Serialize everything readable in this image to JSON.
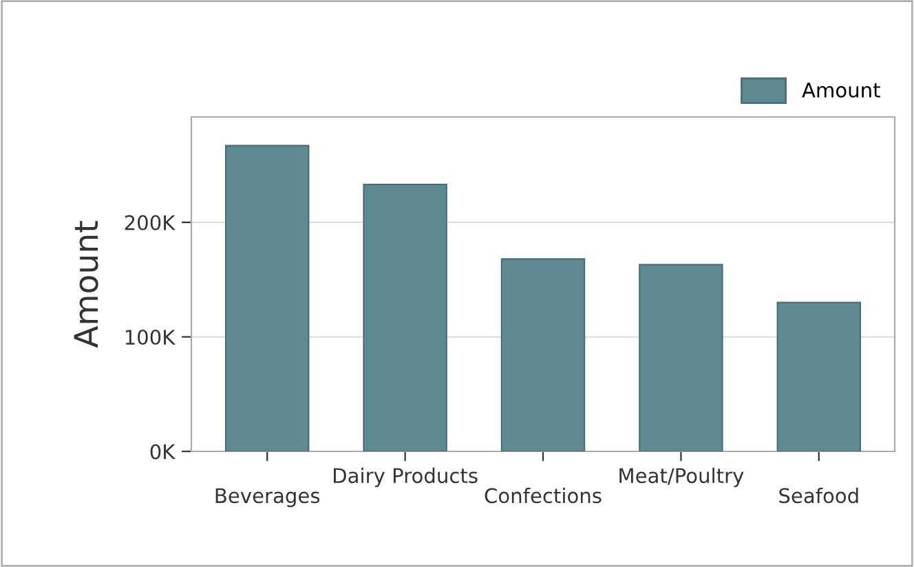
{
  "chart_data": {
    "type": "bar",
    "ylabel": "Amount",
    "categories": [
      "Beverages",
      "Dairy Products",
      "Confections",
      "Meat/Poultry",
      "Seafood"
    ],
    "series": [
      {
        "name": "Amount",
        "color": "#5f8a92",
        "values": [
          267000,
          233000,
          168000,
          163000,
          130000
        ]
      }
    ],
    "ylim": [
      0,
      292000
    ],
    "yticks": [
      {
        "value": 0,
        "label": "0K"
      },
      {
        "value": 100000,
        "label": "100K"
      },
      {
        "value": 200000,
        "label": "200K"
      }
    ],
    "grid": "y",
    "legend": "top right"
  }
}
